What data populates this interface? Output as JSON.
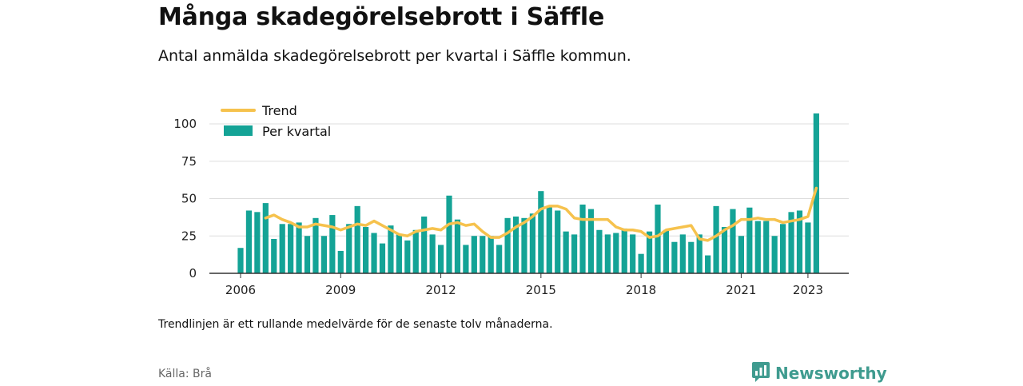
{
  "title": "Många skadegörelsebrott i Säffle",
  "subtitle": "Antal anmälda skadegörelsebrott per kvartal i Säffle kommun.",
  "note": "Trendlinjen är ett rullande medelvärde för de senaste tolv månaderna.",
  "source": "Källa: Brå",
  "brand": {
    "name": "Newsworthy",
    "icon": "newsworthy-logo-icon"
  },
  "colors": {
    "bar": "#14a396",
    "trend": "#f6c24d",
    "grid": "#dddddd",
    "axis": "#333333",
    "brand": "#3f9b8f"
  },
  "chart_data": {
    "type": "bar",
    "title": "Många skadegörelsebrott i Säffle",
    "xlabel": "",
    "ylabel": "",
    "ylim": [
      0,
      110
    ],
    "yticks": [
      0,
      25,
      50,
      75,
      100
    ],
    "xticks": [
      "2006",
      "2009",
      "2012",
      "2015",
      "2018",
      "2021",
      "2023"
    ],
    "grid": true,
    "legend_position": "top-left",
    "categories": [
      "2006 Q1",
      "2006 Q2",
      "2006 Q3",
      "2006 Q4",
      "2007 Q1",
      "2007 Q2",
      "2007 Q3",
      "2007 Q4",
      "2008 Q1",
      "2008 Q2",
      "2008 Q3",
      "2008 Q4",
      "2009 Q1",
      "2009 Q2",
      "2009 Q3",
      "2009 Q4",
      "2010 Q1",
      "2010 Q2",
      "2010 Q3",
      "2010 Q4",
      "2011 Q1",
      "2011 Q2",
      "2011 Q3",
      "2011 Q4",
      "2012 Q1",
      "2012 Q2",
      "2012 Q3",
      "2012 Q4",
      "2013 Q1",
      "2013 Q2",
      "2013 Q3",
      "2013 Q4",
      "2014 Q1",
      "2014 Q2",
      "2014 Q3",
      "2014 Q4",
      "2015 Q1",
      "2015 Q2",
      "2015 Q3",
      "2015 Q4",
      "2016 Q1",
      "2016 Q2",
      "2016 Q3",
      "2016 Q4",
      "2017 Q1",
      "2017 Q2",
      "2017 Q3",
      "2017 Q4",
      "2018 Q1",
      "2018 Q2",
      "2018 Q3",
      "2018 Q4",
      "2019 Q1",
      "2019 Q2",
      "2019 Q3",
      "2019 Q4",
      "2020 Q1",
      "2020 Q2",
      "2020 Q3",
      "2020 Q4",
      "2021 Q1",
      "2021 Q2",
      "2021 Q3",
      "2021 Q4",
      "2022 Q1",
      "2022 Q2",
      "2022 Q3",
      "2022 Q4",
      "2023 Q1",
      "2023 Q2",
      "2023 Q3",
      "2023 Q4"
    ],
    "series": [
      {
        "name": "Per kvartal",
        "type": "bar",
        "values": [
          17,
          42,
          41,
          47,
          23,
          33,
          33,
          34,
          25,
          37,
          25,
          39,
          15,
          33,
          45,
          31,
          27,
          20,
          32,
          26,
          22,
          29,
          38,
          26,
          19,
          52,
          36,
          19,
          25,
          25,
          25,
          19,
          37,
          38,
          37,
          40,
          55,
          45,
          42,
          28,
          26,
          46,
          43,
          29,
          26,
          27,
          30,
          26,
          13,
          28,
          46,
          29,
          21,
          26,
          21,
          26,
          12,
          45,
          31,
          43,
          25,
          44,
          35,
          35,
          25,
          33,
          41,
          42,
          34,
          107,
          null,
          null
        ]
      },
      {
        "name": "Trend",
        "type": "line",
        "values": [
          null,
          null,
          null,
          37,
          39,
          36,
          34,
          31,
          31,
          33,
          32,
          31,
          29,
          31,
          33,
          32,
          35,
          32,
          29,
          26,
          25,
          28,
          29,
          30,
          29,
          33,
          34,
          32,
          33,
          28,
          24,
          24,
          27,
          31,
          34,
          38,
          43,
          45,
          45,
          43,
          37,
          36,
          36,
          36,
          36,
          31,
          29,
          29,
          28,
          24,
          25,
          29,
          30,
          31,
          32,
          23,
          22,
          25,
          29,
          32,
          36,
          36,
          37,
          36,
          36,
          34,
          35,
          36,
          38,
          57,
          null,
          null
        ]
      }
    ]
  }
}
